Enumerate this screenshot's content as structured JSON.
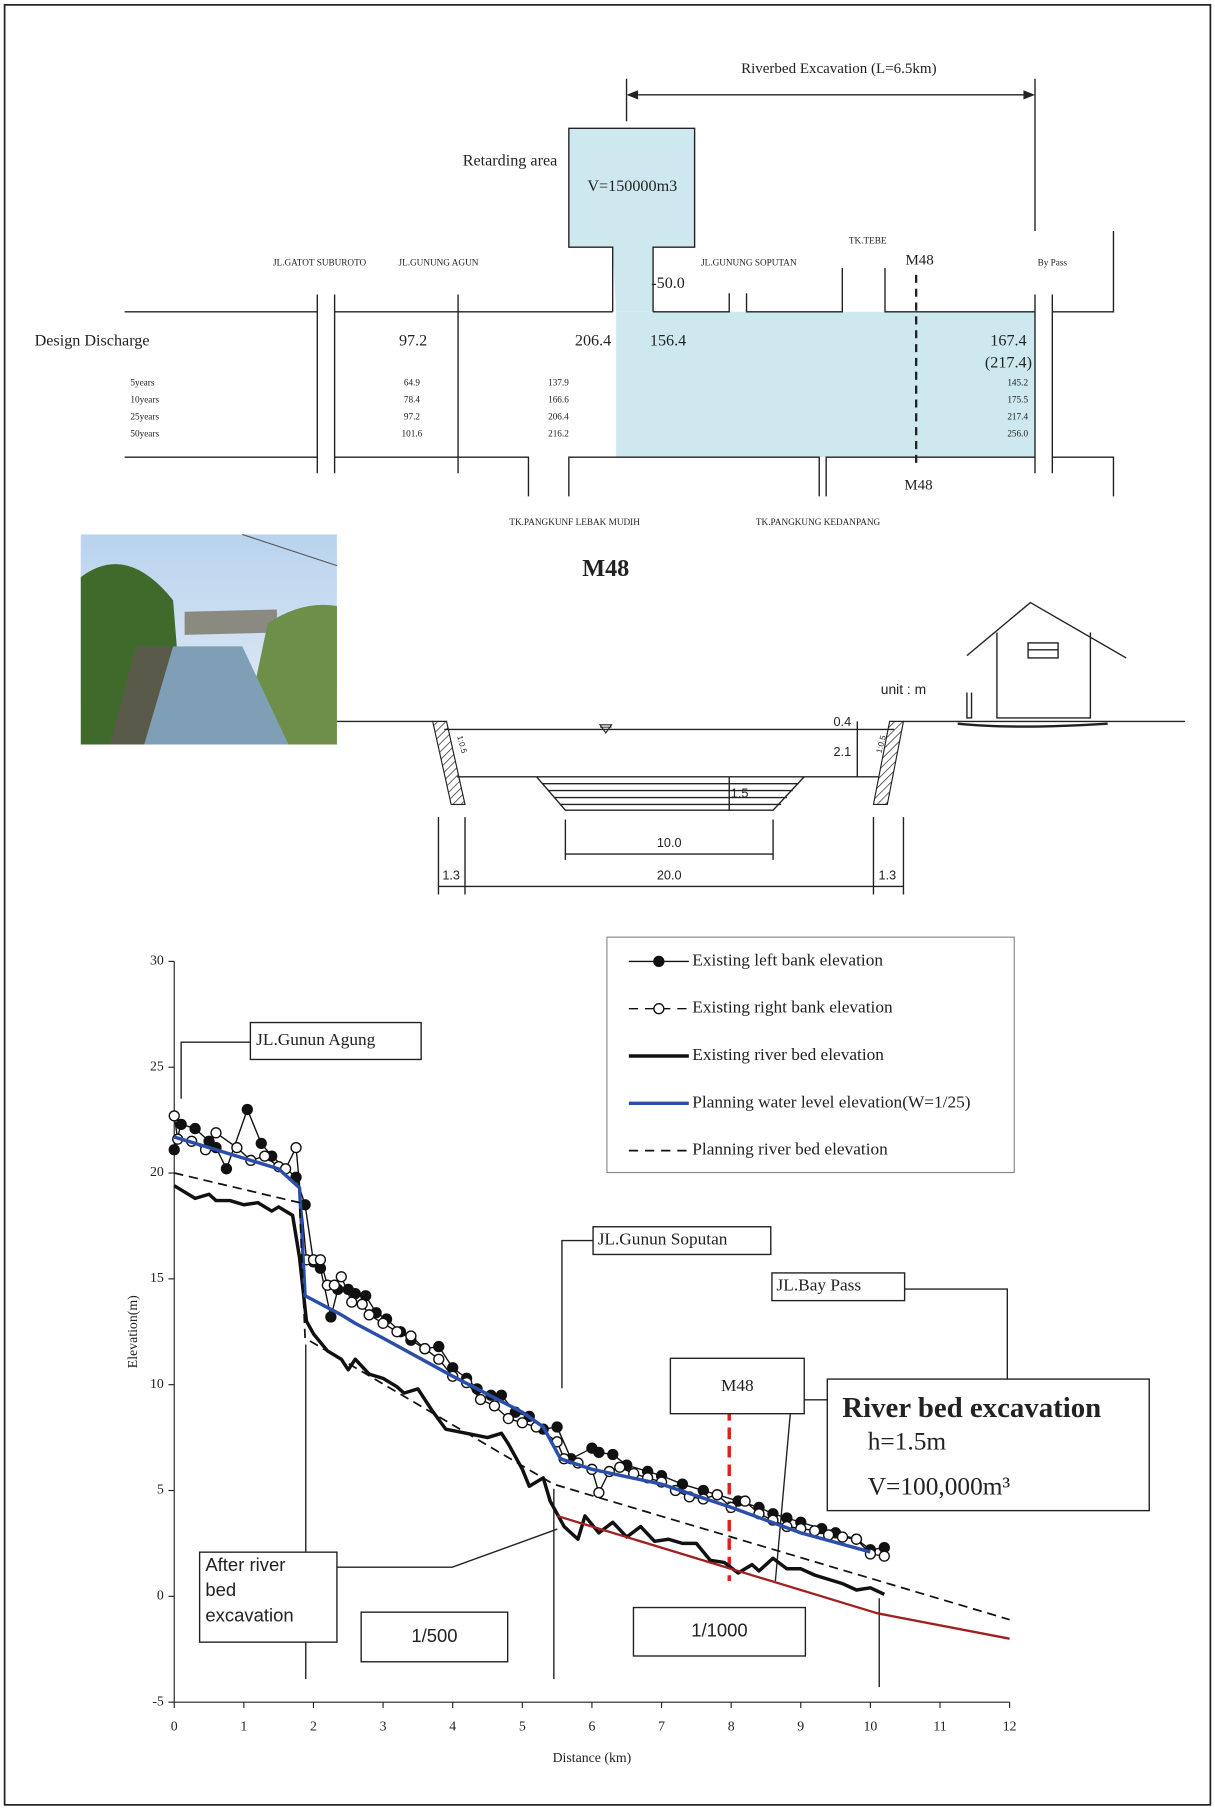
{
  "diagram": {
    "excavation_label": "Riverbed Excavation (L=6.5km)",
    "retarding_label": "Retarding area",
    "retarding_volume": "V=150000m3",
    "retarding_cut": "-50.0",
    "roads": [
      "JL.GATOT SUBUROTO",
      "JL.GUNUNG AGUN",
      "JL.GUNUNG SOPUTAN",
      "TK.TEBE",
      "By Pass"
    ],
    "section_top": "M48",
    "section_bottom": "M48",
    "discharge_label": "Design Discharge",
    "discharge": [
      "97.2",
      "206.4",
      "156.4",
      "167.4",
      "(217.4)"
    ],
    "return_periods": [
      [
        "5years",
        "64.9",
        "137.9",
        "145.2"
      ],
      [
        "10years",
        "78.4",
        "166.6",
        "175.5"
      ],
      [
        "25years",
        "97.2",
        "206.4",
        "217.4"
      ],
      [
        "50years",
        "101.6",
        "216.2",
        "256.0"
      ]
    ],
    "tributaries": [
      "TK.PANGKUNF LEBAK MUDIH",
      "TK.PANGKUNG KEDANPANG"
    ]
  },
  "cross_section": {
    "title": "M48",
    "unit": "unit : m",
    "freeboard": "0.4",
    "depth": "2.1",
    "excavation_depth": "1.5",
    "bottom_width": "10.0",
    "width": "20.0",
    "left_berm": "1.3",
    "right_berm": "1.3",
    "left_slope": "1:0.5",
    "right_slope": "1:0.5"
  },
  "chart_data": {
    "type": "line",
    "xlabel": "Distance (km)",
    "ylabel": "Elevation(m)",
    "xlim": [
      0,
      12
    ],
    "ylim": [
      -5,
      30
    ],
    "xticks": [
      0,
      1,
      2,
      3,
      4,
      5,
      6,
      7,
      8,
      9,
      10,
      11,
      12
    ],
    "yticks": [
      -5,
      0,
      5,
      10,
      15,
      20,
      25,
      30
    ],
    "series": [
      {
        "name": "Existing left bank elevation",
        "color": "#111111",
        "marker": "filled",
        "dash": false,
        "width": 1.2,
        "x": [
          0,
          0.1,
          0.3,
          0.5,
          0.6,
          0.75,
          1.05,
          1.25,
          1.4,
          1.75,
          1.88,
          2.0,
          2.1,
          2.25,
          2.35,
          2.5,
          2.6,
          2.75,
          2.9,
          3.05,
          3.25,
          3.4,
          3.6,
          3.8,
          4.0,
          4.2,
          4.35,
          4.55,
          4.7,
          4.9,
          5.1,
          5.3,
          5.5,
          5.7,
          6.0,
          6.1,
          6.3,
          6.5,
          6.8,
          7.0,
          7.3,
          7.6,
          7.8,
          8.1,
          8.4,
          8.6,
          8.8,
          9.0,
          9.3,
          9.5,
          9.8,
          10.0,
          10.2
        ],
        "values": [
          21.1,
          22.3,
          22.1,
          21.5,
          21.2,
          20.2,
          23.0,
          21.4,
          20.8,
          19.8,
          18.5,
          15.8,
          15.5,
          13.2,
          14.5,
          14.5,
          14.3,
          14.2,
          13.4,
          13.1,
          12.5,
          12.1,
          11.7,
          11.8,
          10.8,
          10.3,
          9.8,
          9.5,
          9.5,
          8.7,
          8.5,
          7.9,
          8.0,
          6.5,
          7.0,
          6.8,
          6.7,
          6.2,
          5.9,
          5.7,
          5.3,
          5.0,
          4.8,
          4.5,
          4.2,
          3.9,
          3.7,
          3.5,
          3.2,
          3.0,
          2.7,
          2.2,
          2.3
        ]
      },
      {
        "name": "Existing right bank elevation",
        "color": "#111111",
        "marker": "open",
        "dash": true,
        "width": 1.2,
        "x": [
          0,
          0.05,
          0.25,
          0.45,
          0.6,
          0.9,
          1.1,
          1.3,
          1.5,
          1.6,
          1.75,
          1.9,
          2.0,
          2.1,
          2.2,
          2.3,
          2.4,
          2.55,
          2.7,
          2.8,
          3.0,
          3.2,
          3.4,
          3.6,
          3.8,
          4.0,
          4.2,
          4.4,
          4.6,
          4.8,
          5.0,
          5.2,
          5.5,
          5.6,
          5.8,
          6.0,
          6.1,
          6.25,
          6.4,
          6.6,
          6.8,
          7.0,
          7.2,
          7.4,
          7.6,
          7.8,
          8.0,
          8.2,
          8.4,
          8.6,
          8.8,
          9.0,
          9.2,
          9.4,
          9.6,
          9.8,
          10.0,
          10.2
        ],
        "values": [
          22.7,
          21.6,
          21.5,
          21.1,
          21.9,
          21.2,
          20.6,
          20.8,
          20.3,
          20.2,
          21.2,
          15.9,
          15.9,
          15.9,
          14.7,
          14.7,
          15.1,
          13.9,
          13.8,
          13.3,
          12.9,
          12.5,
          12.3,
          11.7,
          11.2,
          10.4,
          10.1,
          9.3,
          9.0,
          8.4,
          8.2,
          8.0,
          7.3,
          6.5,
          6.3,
          6.0,
          4.9,
          5.9,
          6.1,
          5.8,
          5.6,
          5.4,
          5.0,
          4.7,
          4.6,
          4.8,
          4.2,
          4.5,
          3.9,
          3.6,
          3.3,
          3.2,
          3.1,
          2.9,
          2.8,
          2.7,
          2.0,
          1.9
        ]
      },
      {
        "name": "Existing river bed elevation",
        "color": "#111111",
        "marker": null,
        "dash": false,
        "width": 3,
        "x": [
          0,
          0.3,
          0.5,
          0.6,
          0.8,
          1.0,
          1.2,
          1.4,
          1.5,
          1.7,
          1.8,
          1.9,
          2.0,
          2.2,
          2.4,
          2.5,
          2.6,
          2.8,
          3.0,
          3.2,
          3.3,
          3.5,
          3.7,
          3.9,
          4.2,
          4.5,
          4.7,
          4.8,
          5.0,
          5.1,
          5.3,
          5.4,
          5.6,
          5.8,
          5.9,
          6.1,
          6.3,
          6.5,
          6.7,
          6.9,
          7.1,
          7.3,
          7.5,
          7.7,
          7.9,
          8.1,
          8.3,
          8.4,
          8.6,
          8.8,
          9.0,
          9.2,
          9.4,
          9.6,
          9.8,
          10.0,
          10.2
        ],
        "values": [
          19.4,
          18.8,
          19.0,
          18.7,
          18.7,
          18.5,
          18.6,
          18.2,
          18.4,
          18.0,
          16.0,
          13.0,
          12.4,
          11.6,
          11.2,
          10.7,
          11.2,
          10.5,
          10.3,
          9.9,
          9.6,
          9.8,
          8.8,
          7.9,
          7.7,
          7.5,
          7.7,
          7.2,
          6.0,
          5.2,
          5.6,
          4.5,
          3.3,
          2.7,
          3.8,
          3.0,
          3.5,
          2.8,
          3.3,
          2.6,
          2.7,
          2.5,
          2.5,
          1.7,
          1.6,
          1.1,
          1.5,
          1.2,
          1.8,
          1.3,
          1.3,
          1.0,
          0.8,
          0.6,
          0.3,
          0.4,
          0.1
        ]
      },
      {
        "name": "Planning water level elevation(W=1/25)",
        "color": "#2b4fa8",
        "marker": null,
        "dash": false,
        "width": 3,
        "x": [
          0,
          0.5,
          1.0,
          1.5,
          1.8,
          1.88,
          2.4,
          2.6,
          3,
          4,
          5,
          5.3,
          5.55,
          6,
          7,
          8,
          9,
          10
        ],
        "values": [
          21.7,
          21.2,
          20.7,
          20.2,
          19.3,
          14.2,
          13.3,
          12.9,
          12.2,
          10.4,
          8.7,
          8.0,
          6.5,
          6.0,
          5.3,
          4.2,
          3.0,
          2.1
        ]
      },
      {
        "name": "Planning river bed elevation",
        "color": "#111111",
        "marker": null,
        "dash": true,
        "width": 1.5,
        "x": [
          0,
          1.8,
          1.88,
          5.45,
          12
        ],
        "values": [
          20.0,
          18.6,
          12.2,
          5.3,
          -1.1
        ]
      },
      {
        "color": "#a01f1f",
        "marker": null,
        "dash": false,
        "width": 2,
        "x": [
          5.5,
          10.1,
          12
        ],
        "values": [
          3.8,
          -0.8,
          -2.0
        ]
      }
    ],
    "annotations": {
      "places": [
        "JL.Gunun Agung",
        "JL.Gunun Soputan",
        "JL.Bay Pass",
        "M48"
      ],
      "excavation_note": [
        "River bed excavation",
        "h=1.5m",
        "V=100,000m³"
      ],
      "after_note": [
        "After river",
        "bed",
        "excavation"
      ],
      "slopes": [
        "1/500",
        "1/1000"
      ]
    }
  }
}
